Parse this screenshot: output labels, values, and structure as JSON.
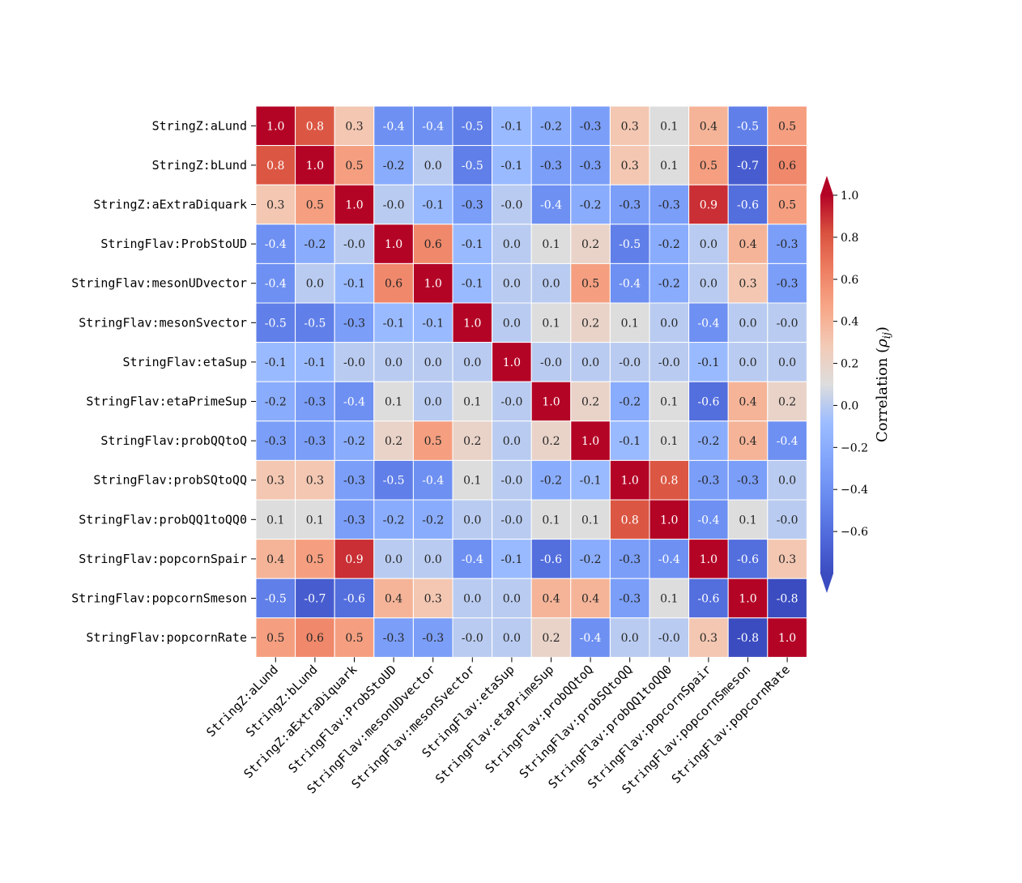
{
  "chart_data": {
    "type": "heatmap",
    "title": "",
    "variables": [
      "StringZ:aLund",
      "StringZ:bLund",
      "StringZ:aExtraDiquark",
      "StringFlav:ProbStoUD",
      "StringFlav:mesonUDvector",
      "StringFlav:mesonSvector",
      "StringFlav:etaSup",
      "StringFlav:etaPrimeSup",
      "StringFlav:probQQtoQ",
      "StringFlav:probSQtoQQ",
      "StringFlav:probQQ1toQQ0",
      "StringFlav:popcornSpair",
      "StringFlav:popcornSmeson",
      "StringFlav:popcornRate"
    ],
    "values": [
      [
        1.0,
        0.8,
        0.3,
        -0.4,
        -0.4,
        -0.5,
        -0.1,
        -0.2,
        -0.3,
        0.3,
        0.1,
        0.4,
        -0.5,
        0.5
      ],
      [
        0.8,
        1.0,
        0.5,
        -0.2,
        0.0,
        -0.5,
        -0.1,
        -0.3,
        -0.3,
        0.3,
        0.1,
        0.5,
        -0.7,
        0.6
      ],
      [
        0.3,
        0.5,
        1.0,
        -0.0,
        -0.1,
        -0.3,
        -0.0,
        -0.4,
        -0.2,
        -0.3,
        -0.3,
        0.9,
        -0.6,
        0.5
      ],
      [
        -0.4,
        -0.2,
        -0.0,
        1.0,
        0.6,
        -0.1,
        0.0,
        0.1,
        0.2,
        -0.5,
        -0.2,
        0.0,
        0.4,
        -0.3
      ],
      [
        -0.4,
        0.0,
        -0.1,
        0.6,
        1.0,
        -0.1,
        0.0,
        0.0,
        0.5,
        -0.4,
        -0.2,
        0.0,
        0.3,
        -0.3
      ],
      [
        -0.5,
        -0.5,
        -0.3,
        -0.1,
        -0.1,
        1.0,
        0.0,
        0.1,
        0.2,
        0.1,
        0.0,
        -0.4,
        0.0,
        -0.0
      ],
      [
        -0.1,
        -0.1,
        -0.0,
        0.0,
        0.0,
        0.0,
        1.0,
        -0.0,
        0.0,
        -0.0,
        -0.0,
        -0.1,
        0.0,
        0.0
      ],
      [
        -0.2,
        -0.3,
        -0.4,
        0.1,
        0.0,
        0.1,
        -0.0,
        1.0,
        0.2,
        -0.2,
        0.1,
        -0.6,
        0.4,
        0.2
      ],
      [
        -0.3,
        -0.3,
        -0.2,
        0.2,
        0.5,
        0.2,
        0.0,
        0.2,
        1.0,
        -0.1,
        0.1,
        -0.2,
        0.4,
        -0.4
      ],
      [
        0.3,
        0.3,
        -0.3,
        -0.5,
        -0.4,
        0.1,
        -0.0,
        -0.2,
        -0.1,
        1.0,
        0.8,
        -0.3,
        -0.3,
        0.0
      ],
      [
        0.1,
        0.1,
        -0.3,
        -0.2,
        -0.2,
        0.0,
        -0.0,
        0.1,
        0.1,
        0.8,
        1.0,
        -0.4,
        0.1,
        -0.0
      ],
      [
        0.4,
        0.5,
        0.9,
        0.0,
        0.0,
        -0.4,
        -0.1,
        -0.6,
        -0.2,
        -0.3,
        -0.4,
        1.0,
        -0.6,
        0.3
      ],
      [
        -0.5,
        -0.7,
        -0.6,
        0.4,
        0.3,
        0.0,
        0.0,
        0.4,
        0.4,
        -0.3,
        0.1,
        -0.6,
        1.0,
        -0.8
      ],
      [
        0.5,
        0.6,
        0.5,
        -0.3,
        -0.3,
        -0.0,
        0.0,
        0.2,
        -0.4,
        0.0,
        -0.0,
        0.3,
        -0.8,
        1.0
      ]
    ],
    "colorbar": {
      "label_prefix": "Correlation (",
      "label_symbol": "ρ",
      "label_subscript": "ij",
      "label_suffix": ")",
      "vmin": -0.8,
      "vmax": 1.0,
      "ticks": [
        1.0,
        0.8,
        0.6,
        0.4,
        0.2,
        0.0,
        -0.2,
        -0.4,
        -0.6
      ],
      "tick_labels": [
        "1.0",
        "0.8",
        "0.6",
        "0.4",
        "0.2",
        "0.0",
        "−0.2",
        "−0.4",
        "−0.6"
      ],
      "extend": "both",
      "colormap": "coolwarm",
      "color_under": "#3b4cc0",
      "color_over": "#b40426"
    }
  }
}
